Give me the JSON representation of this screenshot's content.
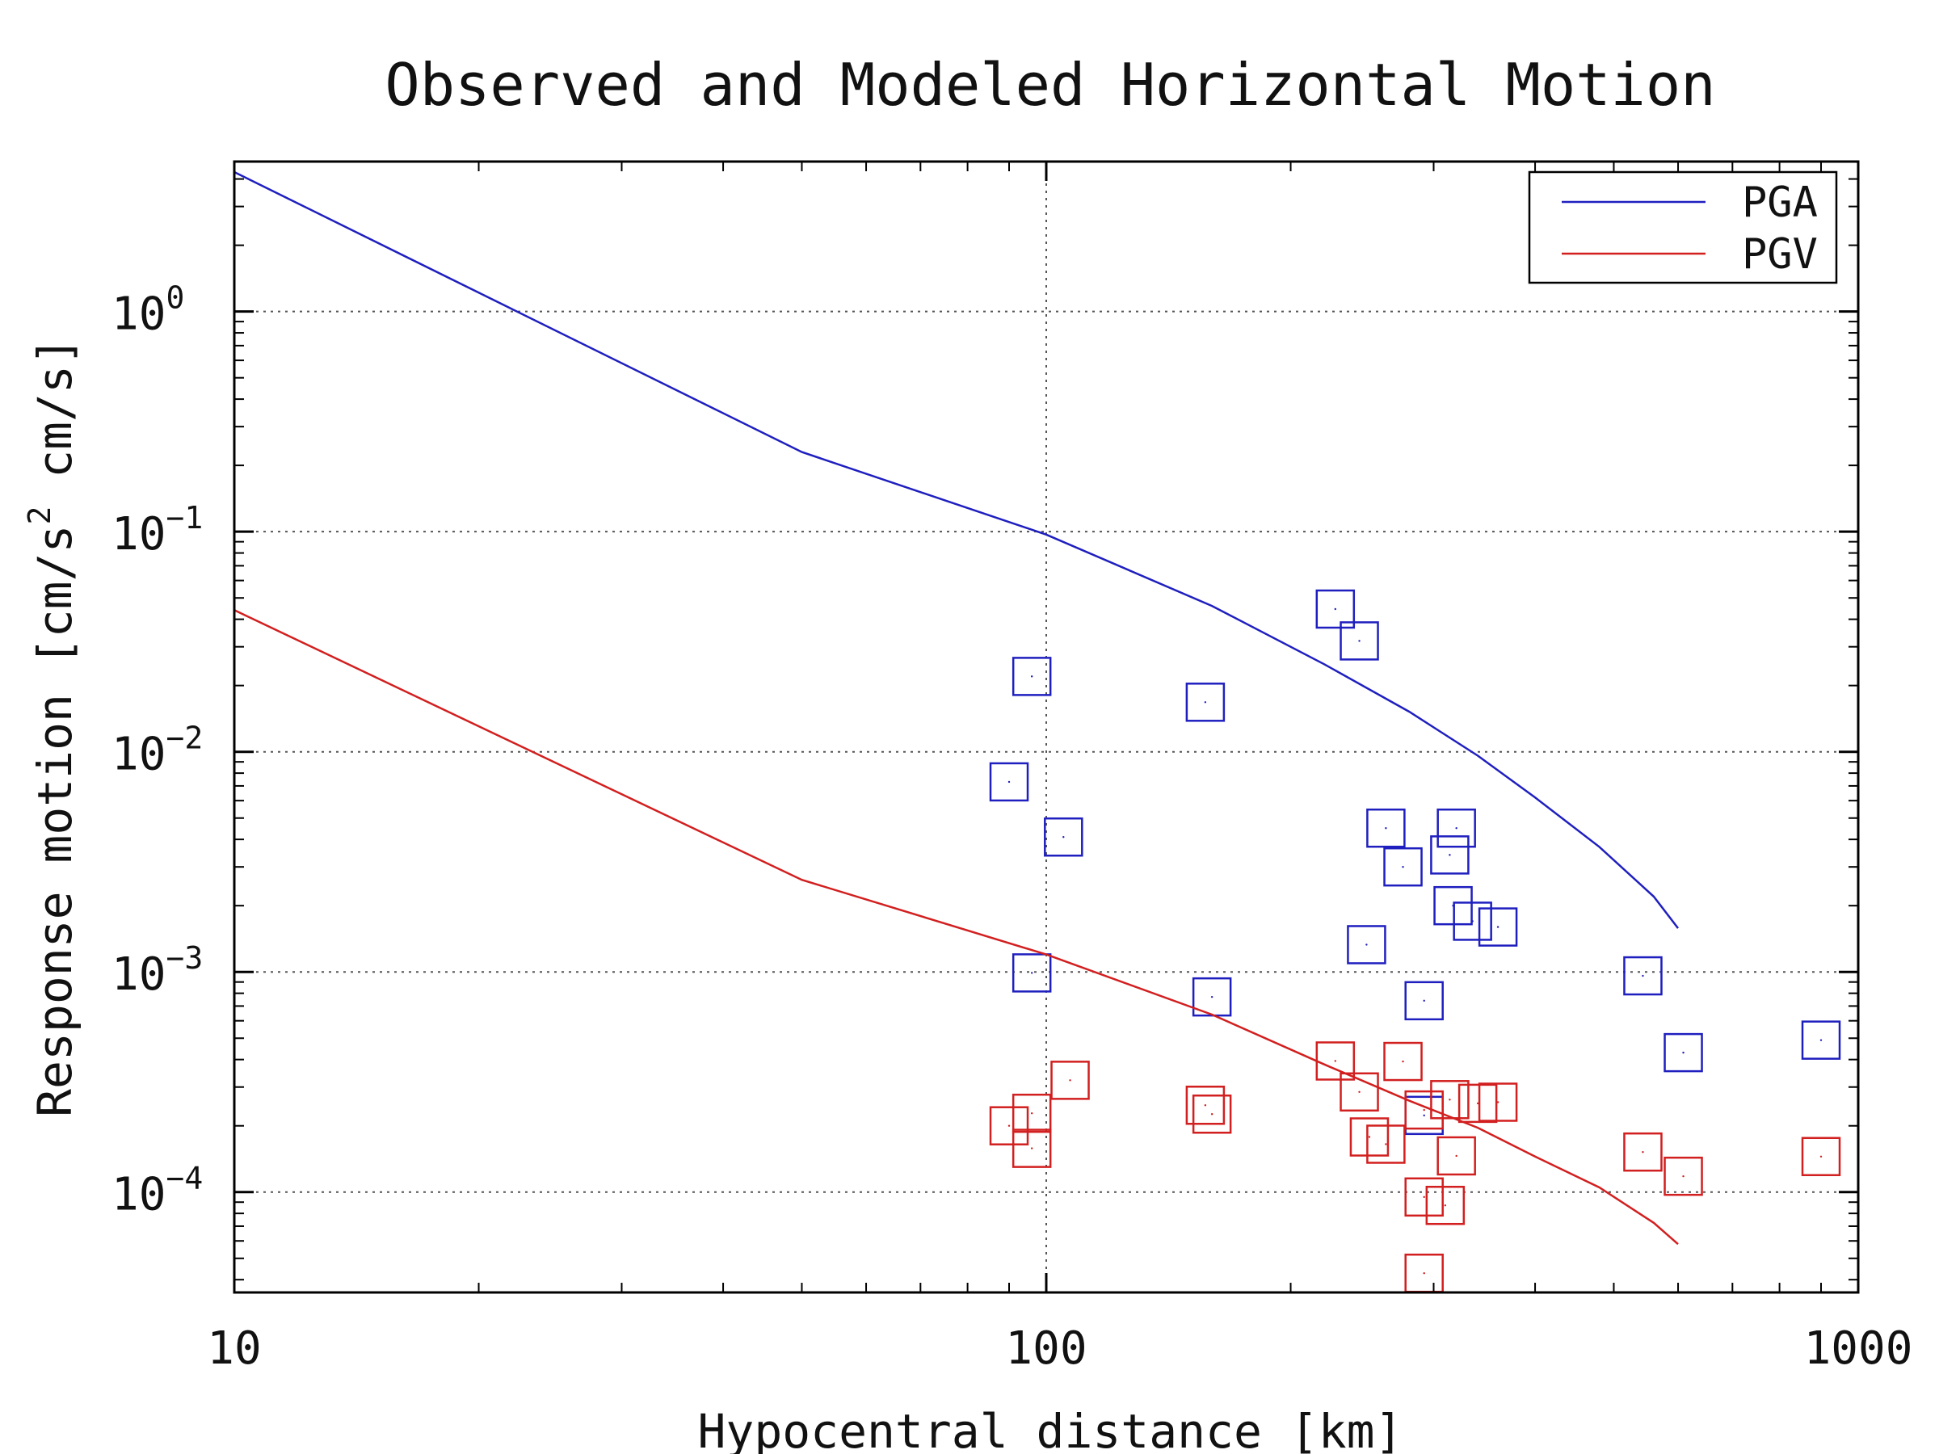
{
  "chart_data": {
    "type": "scatter",
    "title": "Observed and Modeled Horizontal Motion",
    "xlabel": "Hypocentral distance [km]",
    "ylabel_parts": [
      "Response motion [cm/s",
      "2",
      " cm/s]"
    ],
    "xscale": "log",
    "yscale": "log",
    "xlim": [
      10,
      1000
    ],
    "ylim": [
      3.5e-05,
      4.8
    ],
    "grid": true,
    "legend_position": "top-right",
    "x_ticks": [
      {
        "value": 10,
        "label": "10"
      },
      {
        "value": 100,
        "label": "100"
      },
      {
        "value": 1000,
        "label": "1000"
      }
    ],
    "y_ticks": [
      {
        "value": 1,
        "base": "10",
        "exp": "0"
      },
      {
        "value": 0.1,
        "base": "10",
        "exp": "−1"
      },
      {
        "value": 0.01,
        "base": "10",
        "exp": "−2"
      },
      {
        "value": 0.001,
        "base": "10",
        "exp": "−3"
      },
      {
        "value": 0.0001,
        "base": "10",
        "exp": "−4"
      }
    ],
    "series": [
      {
        "name": "PGA",
        "color": "#1f1fbf",
        "line": {
          "x": [
            10,
            50,
            100,
            160,
            220,
            280,
            340,
            400,
            480,
            560,
            600
          ],
          "y": [
            4.3,
            0.23,
            0.097,
            0.046,
            0.025,
            0.0152,
            0.0096,
            0.0062,
            0.0037,
            0.0022,
            0.00158
          ]
        },
        "points": {
          "x": [
            96,
            157,
            227,
            243,
            90,
            105,
            262,
            320,
            275,
            314,
            317,
            335,
            360,
            248,
            96,
            160,
            292,
            543,
            609,
            900,
            292
          ],
          "y": [
            0.022,
            0.0168,
            0.0445,
            0.0319,
            0.0073,
            0.0041,
            0.0045,
            0.0045,
            0.003,
            0.0034,
            0.002,
            0.0017,
            0.0016,
            0.00133,
            0.00099,
            0.00077,
            0.00074,
            0.00096,
            0.00043,
            0.00049,
            0.000223
          ]
        }
      },
      {
        "name": "PGV",
        "color": "#d21f1f",
        "line": {
          "x": [
            10,
            50,
            100,
            160,
            220,
            280,
            340,
            400,
            480,
            560,
            600
          ],
          "y": [
            0.044,
            0.00262,
            0.0012,
            0.00064,
            0.00038,
            0.00026,
            0.000196,
            0.000145,
            0.000105,
            7.25e-05,
            5.8e-05
          ]
        },
        "points": {
          "x": [
            90,
            96,
            96,
            107,
            157,
            160,
            227,
            243,
            250,
            262,
            275,
            292,
            314,
            320,
            340,
            360,
            292,
            543,
            609,
            900,
            310,
            292
          ],
          "y": [
            0.0002,
            0.000228,
            0.000158,
            0.000322,
            0.000248,
            0.000226,
            0.000394,
            0.000285,
            0.000178,
            0.000165,
            0.000392,
            0.000236,
            0.000263,
            0.000146,
            0.000253,
            0.000256,
            9.5e-05,
            0.000152,
            0.000118,
            0.000145,
            8.7e-05,
            4.28e-05
          ]
        }
      }
    ]
  }
}
